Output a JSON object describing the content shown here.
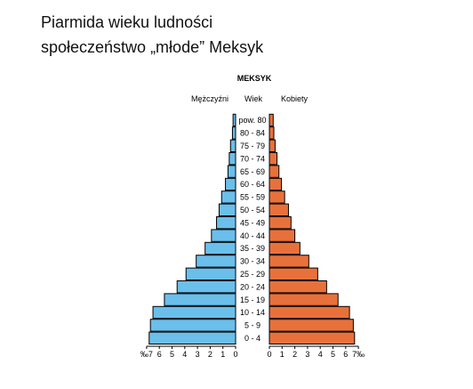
{
  "page": {
    "heading_line1": "Piarmida wieku ludności",
    "heading_line2": "społeczeństwo „młode” Meksyk"
  },
  "chart_data": {
    "type": "bar",
    "orientation": "horizontal",
    "title": "MEKSYK",
    "left_label": "Mężczyźni",
    "center_label": "Wiek",
    "right_label": "Kobiety",
    "categories": [
      "0 - 4",
      "5 - 9",
      "10 - 14",
      "15 - 19",
      "20 - 24",
      "25 - 29",
      "30 - 34",
      "35 - 39",
      "40 - 44",
      "45 - 49",
      "50 - 54",
      "55 - 59",
      "60 - 64",
      "65 - 69",
      "70 - 74",
      "75 - 79",
      "80 - 84",
      "pow. 80"
    ],
    "unit": "‰",
    "xlim": [
      0,
      7
    ],
    "left_ticks": [
      "‰7",
      "6",
      "5",
      "4",
      "3",
      "2",
      "1",
      "0"
    ],
    "right_ticks": [
      "0",
      "1",
      "2",
      "3",
      "4",
      "5",
      "6",
      "7‰"
    ],
    "series": [
      {
        "name": "Mężczyźni",
        "color": "#6bbfeb",
        "values": [
          6.8,
          6.7,
          6.5,
          5.6,
          4.6,
          3.9,
          3.1,
          2.4,
          1.9,
          1.5,
          1.3,
          1.1,
          0.8,
          0.6,
          0.5,
          0.4,
          0.25,
          0.2
        ]
      },
      {
        "name": "Kobiety",
        "color": "#e8713b",
        "values": [
          6.7,
          6.6,
          6.3,
          5.4,
          4.5,
          3.8,
          3.1,
          2.4,
          2.0,
          1.7,
          1.5,
          1.2,
          0.95,
          0.75,
          0.6,
          0.45,
          0.35,
          0.3
        ]
      }
    ]
  }
}
